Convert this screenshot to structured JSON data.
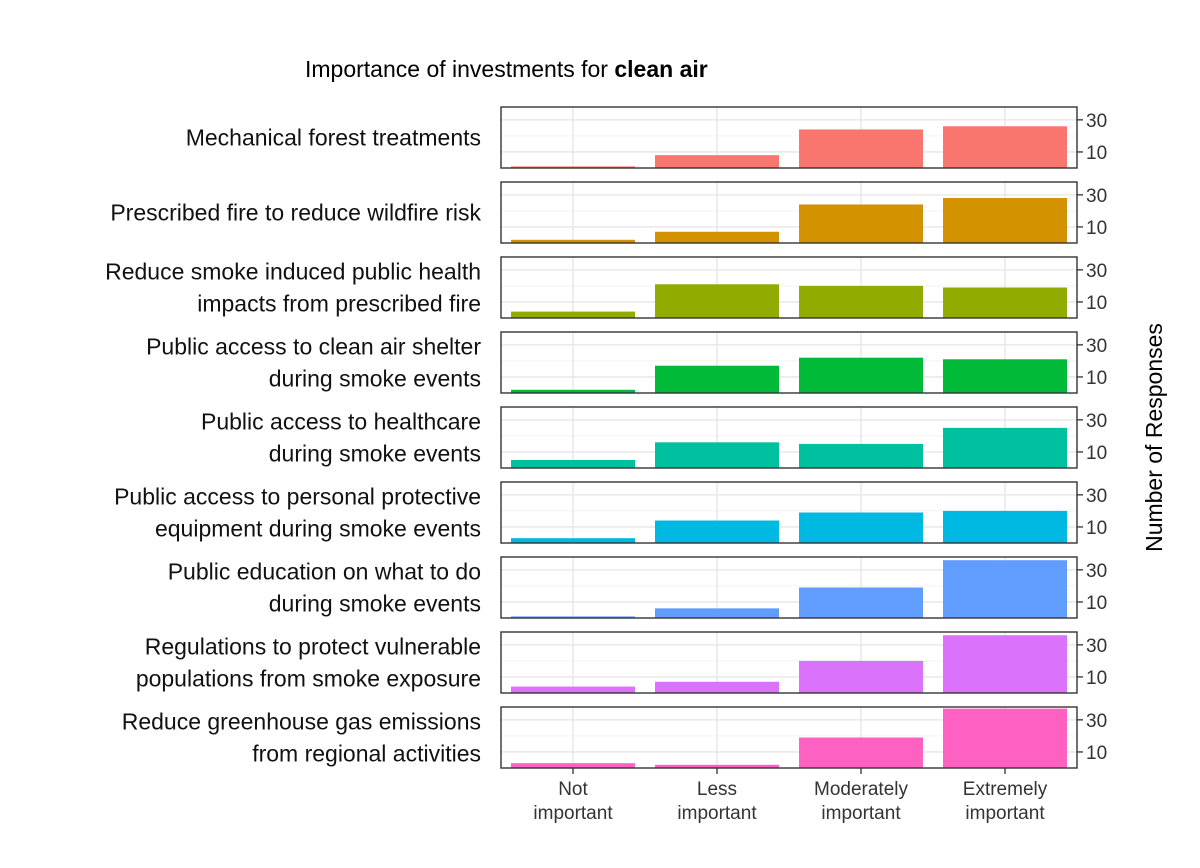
{
  "chart_data": {
    "type": "bar",
    "title_prefix": "Importance of investments for ",
    "title_bold": "clean air",
    "categories": [
      "Not important",
      "Less important",
      "Moderately important",
      "Extremely important"
    ],
    "category_lines": [
      [
        "Not",
        "important"
      ],
      [
        "Less",
        "important"
      ],
      [
        "Moderately",
        "important"
      ],
      [
        "Extremely",
        "important"
      ]
    ],
    "ylabel": "Number of Responses",
    "ylim": [
      0,
      38
    ],
    "yticks": [
      10,
      30
    ],
    "series": [
      {
        "name": "Mechanical forest treatments",
        "label_lines": [
          "Mechanical forest treatments"
        ],
        "color": "#F8766D",
        "values": [
          1,
          8,
          24,
          26
        ]
      },
      {
        "name": "Prescribed fire to reduce wildfire risk",
        "label_lines": [
          "Prescribed fire to reduce wildfire risk"
        ],
        "color": "#D39200",
        "values": [
          2,
          7,
          24,
          28
        ]
      },
      {
        "name": "Reduce smoke induced public health impacts from prescribed fire",
        "label_lines": [
          "Reduce smoke induced public health",
          "impacts from prescribed fire"
        ],
        "color": "#93AA00",
        "values": [
          4,
          21,
          20,
          19
        ]
      },
      {
        "name": "Public access to clean air shelter during smoke events",
        "label_lines": [
          "Public access to clean air shelter",
          "during smoke events"
        ],
        "color": "#00BA38",
        "values": [
          2,
          17,
          22,
          21
        ]
      },
      {
        "name": "Public access to healthcare during smoke events",
        "label_lines": [
          "Public access to healthcare",
          "during smoke events"
        ],
        "color": "#00C19F",
        "values": [
          5,
          16,
          15,
          25
        ]
      },
      {
        "name": "Public access to personal protective equipment during smoke events",
        "label_lines": [
          "Public access to personal protective",
          "equipment during smoke events"
        ],
        "color": "#00B9E3",
        "values": [
          3,
          14,
          19,
          20
        ]
      },
      {
        "name": "Public education on what to do during smoke events",
        "label_lines": [
          "Public education on what to do",
          "during smoke events"
        ],
        "color": "#619CFF",
        "values": [
          1,
          6,
          19,
          36
        ]
      },
      {
        "name": "Regulations to protect vulnerable populations from smoke exposure",
        "label_lines": [
          "Regulations to protect vulnerable",
          "populations from smoke exposure"
        ],
        "color": "#DB72FB",
        "values": [
          4,
          7,
          20,
          36
        ]
      },
      {
        "name": "Reduce greenhouse gas emissions from regional activities",
        "label_lines": [
          "Reduce greenhouse gas emissions",
          "from regional activities"
        ],
        "color": "#FF61C3",
        "values": [
          3,
          2,
          19,
          37
        ]
      }
    ]
  }
}
